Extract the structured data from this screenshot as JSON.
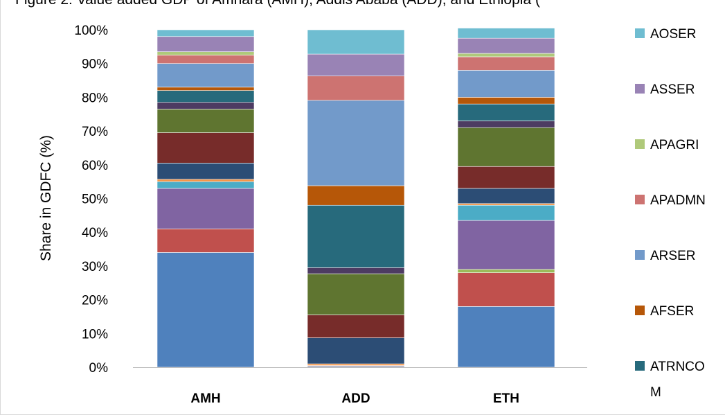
{
  "chart_data": {
    "type": "bar",
    "stacked": true,
    "title": "Figure 2: Value added GDP of Amhara (AMH), Addis Ababa (ADD), and Ethiopia (",
    "ylabel": "Share  in  GDFC  (%)",
    "xlabel": "",
    "ylim": [
      0,
      100
    ],
    "yticks": [
      "0%",
      "10%",
      "20%",
      "30%",
      "40%",
      "50%",
      "60%",
      "70%",
      "80%",
      "90%",
      "100%"
    ],
    "categories": [
      "AMH",
      "ADD",
      "ETH"
    ],
    "grid": false,
    "legend_position": "right",
    "series": [
      {
        "name": "",
        "color": "#4f81bd",
        "values": [
          34.0,
          0.3,
          18.0
        ]
      },
      {
        "name": "",
        "color": "#c0504d",
        "values": [
          7.0,
          0.2,
          10.0
        ]
      },
      {
        "name": "",
        "color": "#9bbb59",
        "values": [
          0.0,
          0.0,
          1.0
        ]
      },
      {
        "name": "",
        "color": "#8064a2",
        "values": [
          12.0,
          0.0,
          14.5
        ]
      },
      {
        "name": "",
        "color": "#4bacc6",
        "values": [
          2.0,
          0.0,
          4.5
        ]
      },
      {
        "name": "",
        "color": "#f79646",
        "values": [
          0.7,
          0.5,
          0.5
        ]
      },
      {
        "name": "",
        "color": "#2c4d75",
        "values": [
          4.8,
          7.7,
          4.5
        ]
      },
      {
        "name": "",
        "color": "#772c2a",
        "values": [
          9.0,
          6.8,
          6.5
        ]
      },
      {
        "name": "",
        "color": "#5f7530",
        "values": [
          7.0,
          12.2,
          11.5
        ]
      },
      {
        "name": "",
        "color": "#4d3b62",
        "values": [
          2.0,
          1.8,
          2.0
        ]
      },
      {
        "name": "ATRNCOM",
        "color": "#276a7c",
        "values": [
          3.5,
          18.5,
          5.0
        ]
      },
      {
        "name": "AFSER",
        "color": "#b65708",
        "values": [
          1.0,
          5.8,
          2.0
        ]
      },
      {
        "name": "ARSER",
        "color": "#729aca",
        "values": [
          7.0,
          25.3,
          8.0
        ]
      },
      {
        "name": "APADMN",
        "color": "#cd7371",
        "values": [
          2.5,
          7.2,
          4.0
        ]
      },
      {
        "name": "APAGRI",
        "color": "#afc97a",
        "values": [
          1.0,
          0.0,
          1.0
        ]
      },
      {
        "name": "ASSER",
        "color": "#9983b5",
        "values": [
          4.5,
          6.5,
          4.5
        ]
      },
      {
        "name": "AOSER",
        "color": "#6fbdd1",
        "values": [
          2.0,
          7.2,
          3.0
        ]
      }
    ],
    "legend": [
      {
        "label": "AOSER",
        "color": "#6fbdd1"
      },
      {
        "label": "ASSER",
        "color": "#9983b5"
      },
      {
        "label": "APAGRI",
        "color": "#afc97a"
      },
      {
        "label": "APADMN",
        "color": "#cd7371"
      },
      {
        "label": "ARSER",
        "color": "#729aca"
      },
      {
        "label": "AFSER",
        "color": "#b65708"
      },
      {
        "label": "ATRNCO",
        "label_cont": "M",
        "color": "#276a7c"
      }
    ]
  }
}
